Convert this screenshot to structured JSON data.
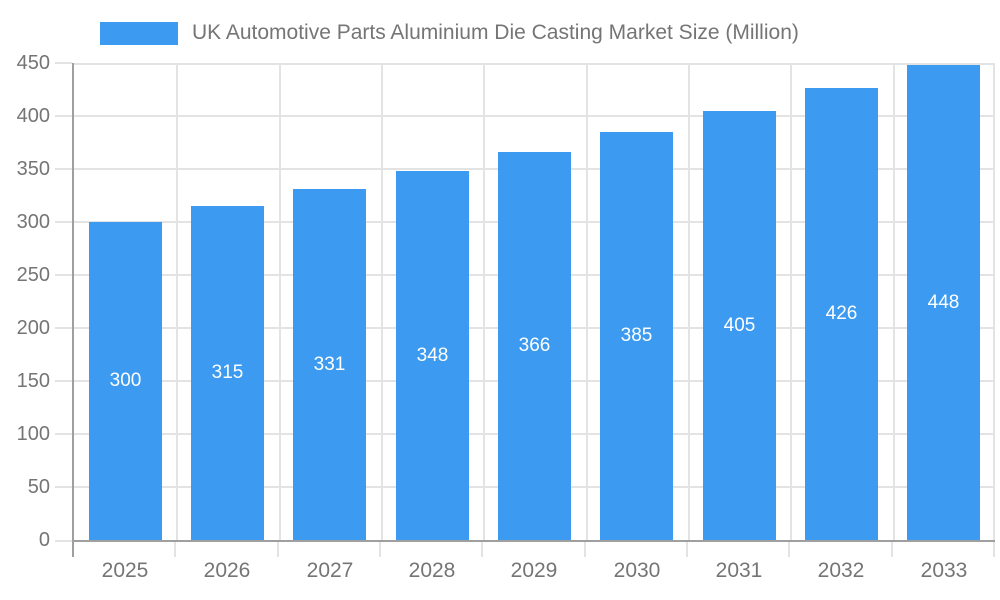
{
  "chart_data": {
    "type": "bar",
    "title": "UK Automotive Parts Aluminium Die Casting Market Size (Million)",
    "categories": [
      "2025",
      "2026",
      "2027",
      "2028",
      "2029",
      "2030",
      "2031",
      "2032",
      "2033"
    ],
    "values": [
      300,
      315,
      331,
      348,
      366,
      385,
      405,
      426,
      448
    ],
    "series": [
      {
        "name": "UK Automotive Parts Aluminium Die Casting Market Size (Million)",
        "values": [
          300,
          315,
          331,
          348,
          366,
          385,
          405,
          426,
          448
        ]
      }
    ],
    "xlabel": "",
    "ylabel": "",
    "ylim": [
      0,
      450
    ],
    "y_ticks": [
      0,
      50,
      100,
      150,
      200,
      250,
      300,
      350,
      400,
      450
    ],
    "grid": true,
    "legend_position": "top-left",
    "bar_labels_visible": true,
    "colors": {
      "bar": "#3c9af0",
      "bar_label_text": "#ffffff",
      "axis_text": "#757575",
      "legend_text": "#757575",
      "grid_line": "#e3e3e3",
      "axis_line": "#9f9f9f",
      "background": "#ffffff"
    }
  }
}
